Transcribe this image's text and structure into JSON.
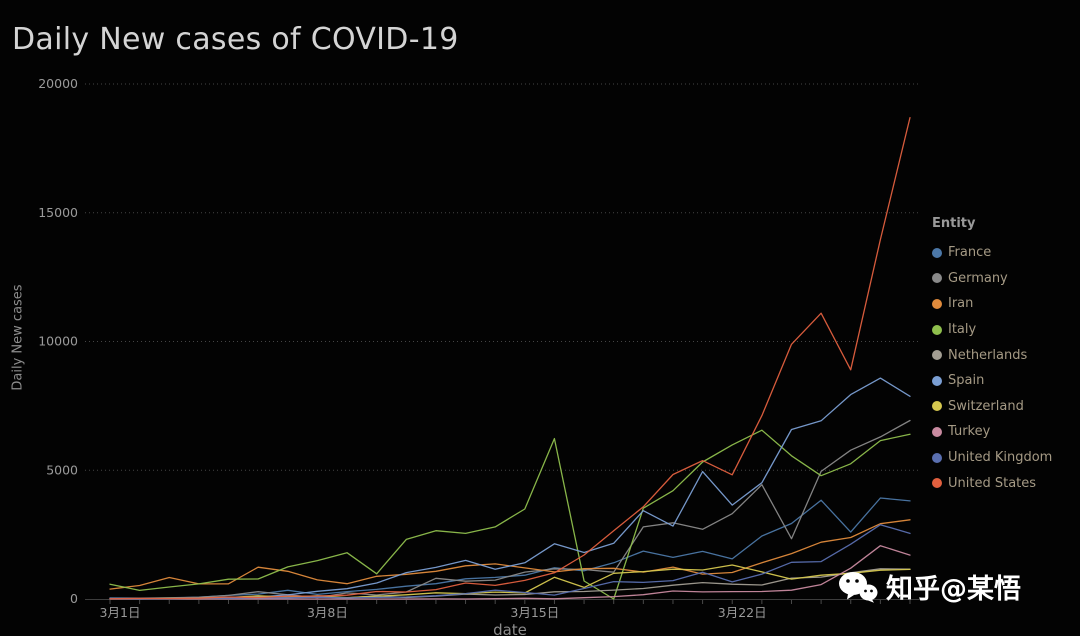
{
  "page": {
    "background": "#030303"
  },
  "legend": {
    "title": "Entity"
  },
  "watermark": {
    "text": "知乎@某悟",
    "icon": "wechat-bubbles-icon",
    "color": "#ffffff"
  },
  "chart_data": {
    "type": "line",
    "title": "Daily New cases of COVID-19",
    "xlabel": "date",
    "ylabel": "Daily New cases",
    "ylim": [
      0,
      20000
    ],
    "yticks": [
      0,
      5000,
      10000,
      15000,
      20000
    ],
    "ytick_labels": [
      "0",
      "5000",
      "10000",
      "15000",
      "20000"
    ],
    "x_days": [
      1,
      2,
      3,
      4,
      5,
      6,
      7,
      8,
      9,
      10,
      11,
      12,
      13,
      14,
      15,
      16,
      17,
      18,
      19,
      20,
      21,
      22,
      23,
      24,
      25,
      26,
      27,
      28
    ],
    "xtick_positions": [
      0,
      7,
      14,
      21
    ],
    "xtick_labels": [
      "3月1日",
      "3月8日",
      "3月15日",
      "3月22日"
    ],
    "grid": "horizontal-dotted",
    "legend_position": "right",
    "series": [
      {
        "name": "France",
        "color": "#4c78a8",
        "values": [
          43,
          30,
          48,
          73,
          138,
          190,
          336,
          177,
          286,
          372,
          497,
          595,
          785,
          838,
          924,
          1210,
          1097,
          1404,
          1861,
          1617,
          1847,
          1559,
          2448,
          2931,
          3838,
          2599,
          3922,
          3809
        ]
      },
      {
        "name": "Germany",
        "color": "#8a8a8a",
        "values": [
          18,
          28,
          39,
          66,
          138,
          284,
          163,
          55,
          237,
          157,
          271,
          802,
          693,
          733,
          1043,
          1174,
          1144,
          1042,
          2801,
          2958,
          2705,
          3311,
          4438,
          2342,
          4954,
          5780,
          6294,
          6933
        ]
      },
      {
        "name": "Iran",
        "color": "#e08b3c",
        "values": [
          385,
          523,
          835,
          586,
          591,
          1234,
          1076,
          743,
          595,
          881,
          958,
          1075,
          1289,
          1365,
          1209,
          1053,
          1178,
          1192,
          1046,
          1237,
          966,
          1028,
          1411,
          1762,
          2206,
          2389,
          2926,
          3076
        ]
      },
      {
        "name": "Italy",
        "color": "#8fbf4d",
        "values": [
          573,
          335,
          466,
          587,
          769,
          778,
          1247,
          1492,
          1797,
          977,
          2313,
          2651,
          2547,
          2800,
          3497,
          6230,
          700,
          0,
          3526,
          4207,
          5322,
          5986,
          6557,
          5560,
          4789,
          5249,
          6153,
          6398
        ]
      },
      {
        "name": "Netherlands",
        "color": "#a39e93",
        "values": [
          10,
          8,
          10,
          15,
          44,
          28,
          60,
          77,
          43,
          121,
          60,
          111,
          190,
          155,
          176,
          278,
          292,
          346,
          409,
          534,
          637,
          573,
          545,
          811,
          852,
          1019,
          1172,
          1159
        ]
      },
      {
        "name": "Spain",
        "color": "#7b9fd4",
        "values": [
          0,
          0,
          17,
          37,
          50,
          79,
          159,
          300,
          400,
          622,
          1024,
          1226,
          1500,
          1159,
          1407,
          2144,
          1806,
          2162,
          3431,
          2833,
          4946,
          3646,
          4517,
          6584,
          6922,
          7937,
          8578,
          7871
        ]
      },
      {
        "name": "Switzerland",
        "color": "#d6c84f",
        "values": [
          9,
          6,
          26,
          38,
          57,
          123,
          66,
          126,
          55,
          107,
          162,
          241,
          210,
          267,
          234,
          841,
          450,
          1000,
          1063,
          1158,
          1128,
          1321,
          1051,
          774,
          925,
          1000,
          1117,
          1148
        ]
      },
      {
        "name": "Turkey",
        "color": "#c98aa0",
        "values": [
          0,
          0,
          0,
          0,
          0,
          0,
          0,
          0,
          0,
          0,
          1,
          4,
          0,
          13,
          29,
          6,
          51,
          93,
          168,
          311,
          277,
          289,
          293,
          343,
          561,
          1196,
          2069,
          1704
        ]
      },
      {
        "name": "United Kingdom",
        "color": "#5a6fb0",
        "values": [
          12,
          13,
          12,
          34,
          30,
          48,
          45,
          69,
          43,
          62,
          77,
          130,
          208,
          342,
          251,
          152,
          407,
          676,
          643,
          714,
          1035,
          665,
          967,
          1427,
          1452,
          2129,
          2885,
          2546
        ]
      },
      {
        "name": "United States",
        "color": "#e2603f",
        "values": [
          7,
          23,
          19,
          33,
          77,
          59,
          114,
          118,
          148,
          291,
          273,
          366,
          620,
          528,
          723,
          1017,
          1708,
          2651,
          3580,
          4835,
          5374,
          4824,
          7123,
          9893,
          11100,
          8900,
          13963,
          18695
        ]
      }
    ]
  }
}
